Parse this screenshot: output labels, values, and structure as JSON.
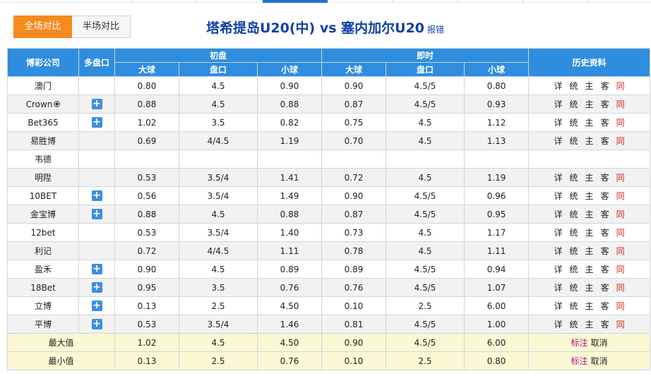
{
  "tabs": [
    {
      "label": "全场对比",
      "active": true
    },
    {
      "label": "半场对比",
      "active": false
    }
  ],
  "match": {
    "title": "塔希提岛U20(中) vs 塞内加尔U20",
    "report_label": "报错"
  },
  "headers": {
    "company": "博彩公司",
    "multi": "多盘口",
    "initial": "初盘",
    "live": "即时",
    "history": "历史资料",
    "over": "大球",
    "line": "盘口",
    "under": "小球"
  },
  "link_labels": {
    "detail": "详",
    "stats": "统",
    "home": "主",
    "away": "客",
    "same": "同"
  },
  "rows": [
    {
      "company": "澳门",
      "multi": false,
      "ball_icon": false,
      "init_over": "0.80",
      "init_line": "4.5",
      "init_under": "0.90",
      "live_over": "0.90",
      "live_line": "4.5/5",
      "live_under": "0.80",
      "links": true
    },
    {
      "company": "Crown",
      "multi": true,
      "ball_icon": true,
      "init_over": "0.88",
      "init_line": "4.5",
      "init_under": "0.88",
      "live_over": "0.87",
      "live_line": "4.5/5",
      "live_under": "0.93",
      "links": true
    },
    {
      "company": "Bet365",
      "multi": true,
      "ball_icon": false,
      "init_over": "1.02",
      "init_line": "3.5",
      "init_under": "0.82",
      "live_over": "0.75",
      "live_line": "4.5",
      "live_under": "1.12",
      "links": true
    },
    {
      "company": "易胜博",
      "multi": false,
      "ball_icon": false,
      "init_over": "0.69",
      "init_line": "4/4.5",
      "init_under": "1.19",
      "live_over": "0.70",
      "live_line": "4.5",
      "live_under": "1.13",
      "links": true
    },
    {
      "company": "韦德",
      "multi": false,
      "ball_icon": false,
      "init_over": "",
      "init_line": "",
      "init_under": "",
      "live_over": "",
      "live_line": "",
      "live_under": "",
      "links": false
    },
    {
      "company": "明陞",
      "multi": false,
      "ball_icon": false,
      "init_over": "0.53",
      "init_line": "3.5/4",
      "init_under": "1.41",
      "live_over": "0.72",
      "live_line": "4.5",
      "live_under": "1.19",
      "links": true
    },
    {
      "company": "10BET",
      "multi": true,
      "ball_icon": false,
      "init_over": "0.56",
      "init_line": "3.5/4",
      "init_under": "1.49",
      "live_over": "0.90",
      "live_line": "4.5/5",
      "live_under": "0.96",
      "links": true
    },
    {
      "company": "金宝博",
      "multi": true,
      "ball_icon": false,
      "init_over": "0.88",
      "init_line": "4.5",
      "init_under": "0.88",
      "live_over": "0.87",
      "live_line": "4.5/5",
      "live_under": "0.95",
      "links": true
    },
    {
      "company": "12bet",
      "multi": false,
      "ball_icon": false,
      "init_over": "0.53",
      "init_line": "3.5/4",
      "init_under": "1.40",
      "live_over": "0.73",
      "live_line": "4.5",
      "live_under": "1.17",
      "links": true
    },
    {
      "company": "利记",
      "multi": false,
      "ball_icon": false,
      "init_over": "0.72",
      "init_line": "4/4.5",
      "init_under": "1.11",
      "live_over": "0.78",
      "live_line": "4.5",
      "live_under": "1.11",
      "links": true
    },
    {
      "company": "盈禾",
      "multi": true,
      "ball_icon": false,
      "init_over": "0.90",
      "init_line": "4.5",
      "init_under": "0.89",
      "live_over": "0.89",
      "live_line": "4.5/5",
      "live_under": "0.94",
      "links": true
    },
    {
      "company": "18Bet",
      "multi": true,
      "ball_icon": false,
      "init_over": "0.95",
      "init_line": "3.5",
      "init_under": "0.76",
      "live_over": "0.76",
      "live_line": "4.5/5",
      "live_under": "1.07",
      "links": true
    },
    {
      "company": "立博",
      "multi": true,
      "ball_icon": false,
      "init_over": "0.13",
      "init_line": "2.5",
      "init_under": "4.50",
      "live_over": "0.10",
      "live_line": "2.5",
      "live_under": "6.00",
      "links": true
    },
    {
      "company": "平博",
      "multi": true,
      "ball_icon": false,
      "init_over": "0.53",
      "init_line": "3.5/4",
      "init_under": "1.46",
      "live_over": "0.81",
      "live_line": "4.5/5",
      "live_under": "1.00",
      "links": true
    }
  ],
  "summary": [
    {
      "label": "最大值",
      "init_over": "1.02",
      "init_line": "4.5",
      "init_under": "4.50",
      "live_over": "0.90",
      "live_line": "4.5/5",
      "live_under": "6.00",
      "mark": "标注",
      "cancel": "取消"
    },
    {
      "label": "最小值",
      "init_over": "0.13",
      "init_line": "2.5",
      "init_under": "0.76",
      "live_over": "0.10",
      "live_line": "2.5",
      "live_under": "0.80",
      "mark": "标注",
      "cancel": "取消"
    }
  ],
  "colors": {
    "tab_active": "#f58a1f",
    "header_blue": "#2f8de0",
    "title_blue": "#1240a8",
    "same_red": "#d21b1b",
    "mark_purple": "#b0128c",
    "summary_bg": "#fbf8d4"
  },
  "icons": {
    "multi_line": "plus-icon",
    "crown": "soccer-ball-icon"
  }
}
